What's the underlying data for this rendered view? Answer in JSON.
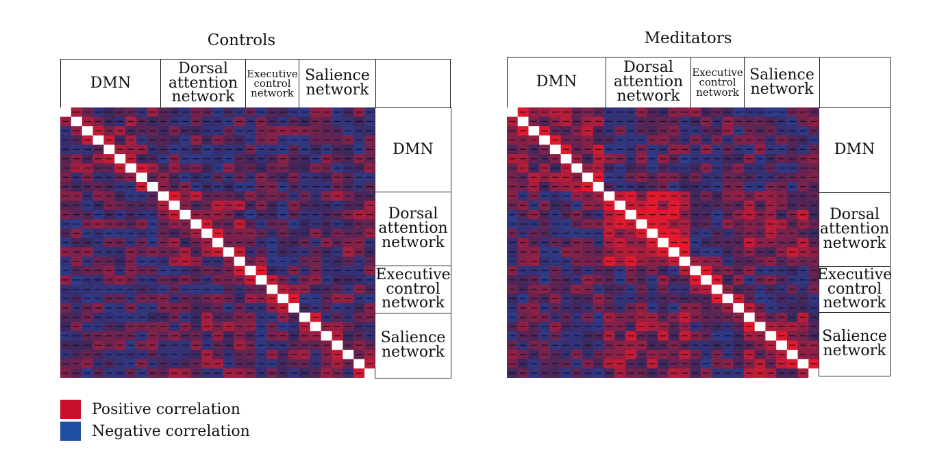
{
  "chart_data": {
    "type": "heatmap",
    "colors": {
      "positive": "#c8102e",
      "negative": "#1f4fa0",
      "diagonal": "#ffffff"
    },
    "networks": [
      "DMN",
      "Dorsal attention network",
      "Executive control network",
      "Salience network"
    ],
    "panels": [
      {
        "title": "Controls",
        "headers": {
          "top": [
            {
              "label": "DMN"
            },
            {
              "label": "Dorsal attention network"
            },
            {
              "label": "Executive control network"
            },
            {
              "label": "Salience network"
            }
          ],
          "side": [
            {
              "label": "DMN"
            },
            {
              "label": "Dorsal attention network"
            },
            {
              "label": "Executive control network"
            },
            {
              "label": "Salience network"
            }
          ]
        }
      },
      {
        "title": "Meditators",
        "headers": {
          "top": [
            {
              "label": "DMN"
            },
            {
              "label": "Dorsal attention network"
            },
            {
              "label": "Executive control network"
            },
            {
              "label": "Salience network"
            }
          ],
          "side": [
            {
              "label": "DMN"
            },
            {
              "label": "Dorsal attention network"
            },
            {
              "label": "Executive control network"
            },
            {
              "label": "Salience network"
            }
          ]
        }
      }
    ]
  },
  "legend": {
    "items": [
      {
        "label": "Positive correlation",
        "color": "#c8102e"
      },
      {
        "label": "Negative correlation",
        "color": "#1f4fa0"
      }
    ]
  }
}
